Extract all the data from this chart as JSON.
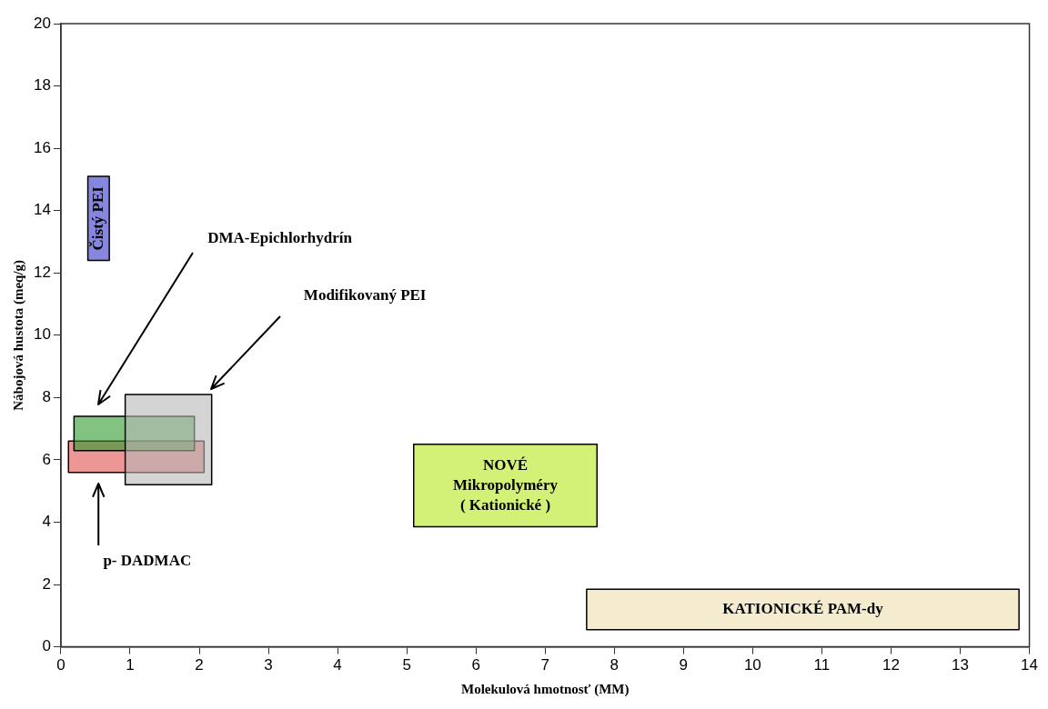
{
  "chart_data": {
    "type": "area",
    "xlabel": "Molekulová hmotnosť (MM)",
    "ylabel": "Nábojová hustota (meq/g)",
    "xlim": [
      0,
      14
    ],
    "ylim": [
      0,
      20
    ],
    "xticks": [
      0,
      1,
      2,
      3,
      4,
      5,
      6,
      7,
      8,
      9,
      10,
      11,
      12,
      13,
      14
    ],
    "yticks": [
      0,
      2,
      4,
      6,
      8,
      10,
      12,
      14,
      16,
      18,
      20
    ],
    "grid": false,
    "legend": false,
    "marker": "none",
    "line_style": "solid",
    "series": [
      {
        "type": "area",
        "name": "Čistý PEI",
        "color": "#3535c8",
        "x": [
          0.39,
          0.7,
          0.7,
          0.39,
          0.39
        ],
        "values": [
          12.4,
          12.4,
          15.1,
          15.1,
          12.4
        ]
      },
      {
        "type": "area",
        "color": "#b8b8b8",
        "x": [
          0.93,
          2.18,
          2.18,
          0.93,
          0.93
        ],
        "values": [
          5.2,
          5.2,
          8.1,
          8.1,
          5.2
        ]
      },
      {
        "type": "area",
        "color": "#2e9b2e",
        "x": [
          0.19,
          1.93,
          1.93,
          0.19,
          0.19
        ],
        "values": [
          6.3,
          6.3,
          7.4,
          7.4,
          6.3
        ]
      },
      {
        "type": "area",
        "color": "#e05050",
        "x": [
          0.11,
          2.07,
          2.07,
          0.11,
          0.11
        ],
        "values": [
          5.6,
          5.6,
          6.6,
          6.6,
          5.6
        ]
      },
      {
        "type": "area",
        "name": "NOVÉ\nMikropolyméry\n( Kationické )",
        "color": "#b5e61d",
        "x": [
          5.1,
          7.75,
          7.75,
          5.1,
          5.1
        ],
        "values": [
          3.85,
          3.85,
          6.5,
          6.5,
          3.85
        ]
      },
      {
        "type": "area",
        "name": "KATIONICKÉ PAM-dy",
        "color": "#eedfb0",
        "x": [
          7.6,
          13.85,
          13.85,
          7.6,
          7.6
        ],
        "values": [
          0.55,
          0.55,
          1.85,
          1.85,
          0.55
        ]
      }
    ],
    "annotations": [
      "Modifikovaný PEI",
      "DMA-Epichlorhydrín",
      "p- DADMAC"
    ]
  }
}
